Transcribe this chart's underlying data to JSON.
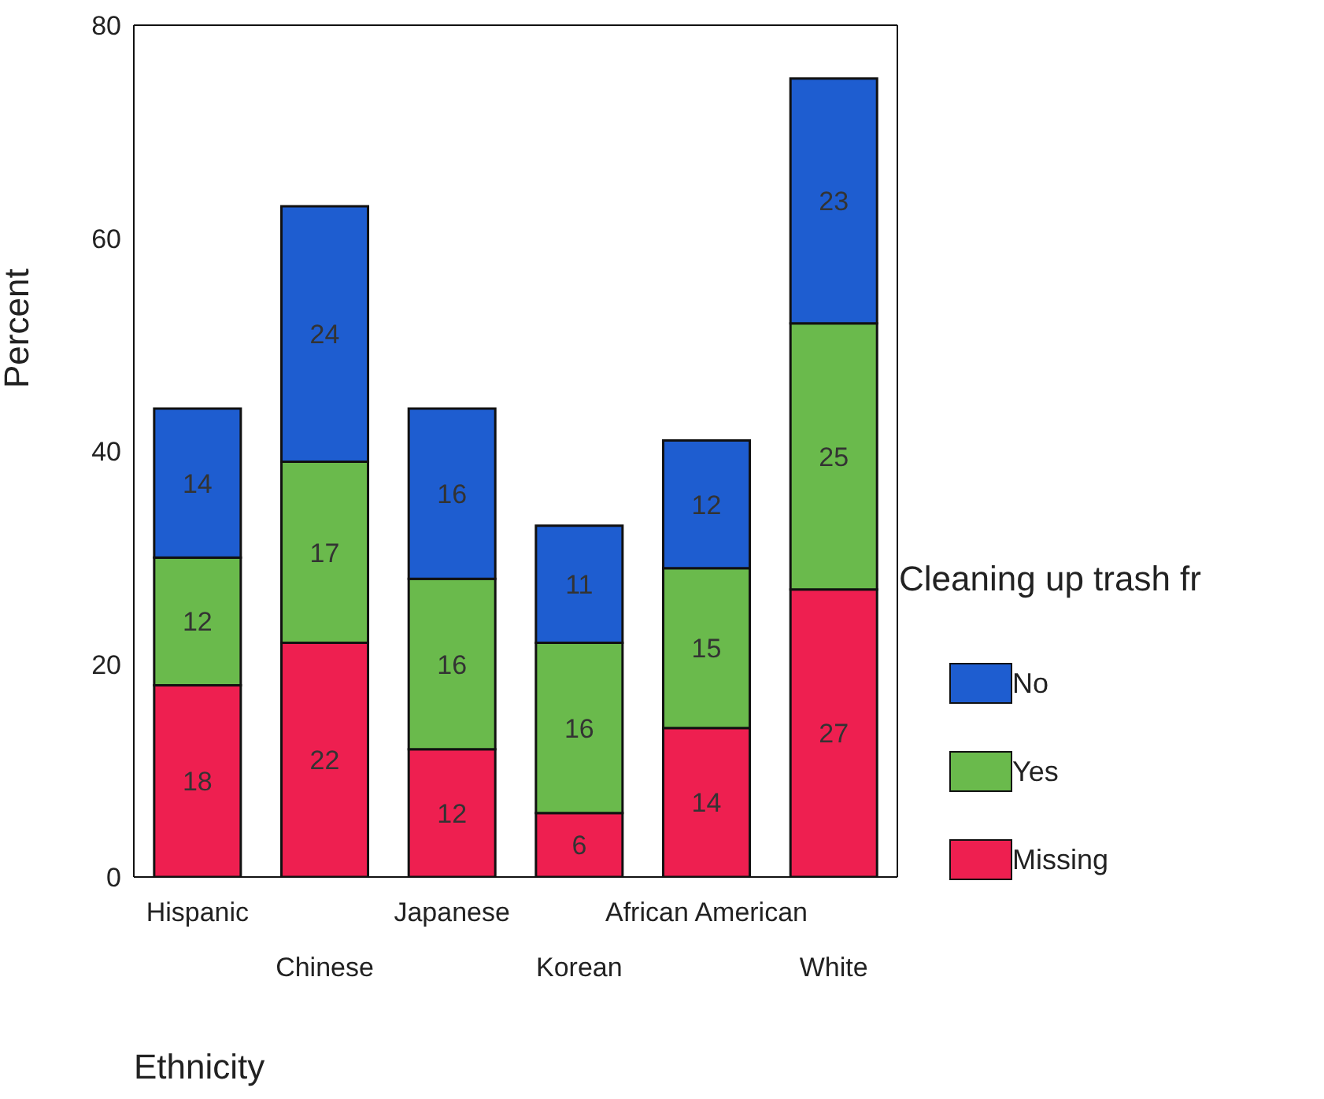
{
  "chart_data": {
    "type": "bar",
    "stacked": true,
    "xlabel": "Ethnicity",
    "ylabel": "Percent",
    "legend_title": "Cleaning up trash fr",
    "categories": [
      "Hispanic",
      "Chinese",
      "Japanese",
      "Korean",
      "African American",
      "White"
    ],
    "series": [
      {
        "name": "Missing",
        "color": "#ee1f50",
        "values": [
          18,
          22,
          12,
          6,
          14,
          27
        ]
      },
      {
        "name": "Yes",
        "color": "#6aba4c",
        "values": [
          12,
          17,
          16,
          16,
          15,
          25
        ]
      },
      {
        "name": "No",
        "color": "#1e5dd0",
        "values": [
          14,
          24,
          16,
          11,
          12,
          23
        ]
      }
    ],
    "ylim": [
      0,
      80
    ],
    "yticks": [
      0,
      20,
      40,
      60,
      80
    ],
    "grid": false,
    "legend": "right",
    "data_labels": true
  }
}
